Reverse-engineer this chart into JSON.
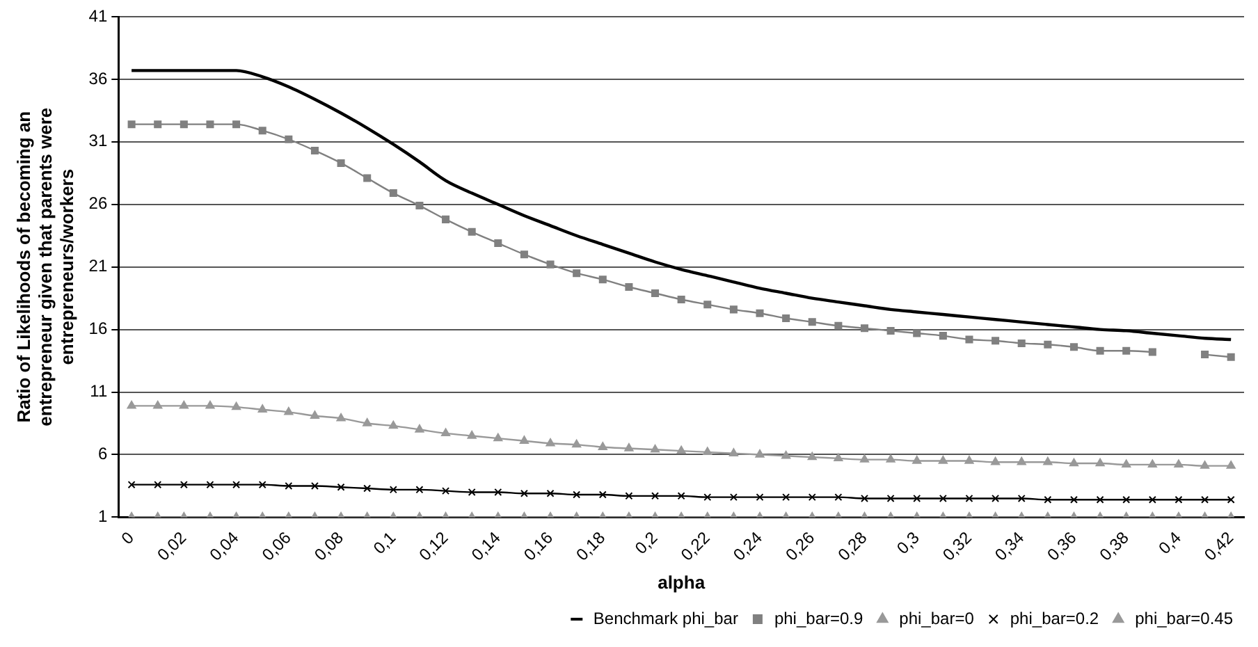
{
  "chart_data": {
    "type": "line",
    "xlabel": "alpha",
    "ylabel": "Ratio of Likelihoods of becoming an entrepreneur given that parents were entrepreneurs/workers",
    "categories": [
      "0",
      null,
      "0,02",
      null,
      "0,04",
      null,
      "0,06",
      null,
      "0,08",
      null,
      "0,1",
      null,
      "0,12",
      null,
      "0,14",
      null,
      "0,16",
      null,
      "0,18",
      null,
      "0,2",
      null,
      "0,22",
      null,
      "0,24",
      null,
      "0,26",
      null,
      "0,28",
      null,
      "0,3",
      null,
      "0,32",
      null,
      "0,34",
      null,
      "0,36",
      null,
      "0,38",
      null,
      "0,4",
      null,
      "0,42"
    ],
    "ylim": [
      1,
      41
    ],
    "yticks": [
      1,
      6,
      11,
      16,
      21,
      26,
      31,
      36,
      41
    ],
    "grid": "y",
    "legend": "bottom",
    "series": [
      {
        "name": "Benchmark phi_bar",
        "color": "#000000",
        "marker": "none",
        "values": [
          36.7,
          36.7,
          36.7,
          36.7,
          36.7,
          36.2,
          35.4,
          34.4,
          33.3,
          32.1,
          30.8,
          29.4,
          27.9,
          26.9,
          26.0,
          25.1,
          24.3,
          23.5,
          22.8,
          22.1,
          21.4,
          20.8,
          20.3,
          19.8,
          19.3,
          18.9,
          18.5,
          18.2,
          17.9,
          17.6,
          17.4,
          17.2,
          17.0,
          16.8,
          16.6,
          16.4,
          16.2,
          16.0,
          15.9,
          15.7,
          15.5,
          15.3,
          15.2
        ]
      },
      {
        "name": "phi_bar=0.9",
        "color": "#808080",
        "marker": "square",
        "values": [
          32.4,
          32.4,
          32.4,
          32.4,
          32.4,
          31.9,
          31.2,
          30.3,
          29.3,
          28.1,
          26.9,
          25.9,
          24.8,
          23.8,
          22.9,
          22.0,
          21.2,
          20.5,
          20.0,
          19.4,
          18.9,
          18.4,
          18.0,
          17.6,
          17.3,
          16.9,
          16.6,
          16.3,
          16.1,
          15.9,
          15.7,
          15.5,
          15.2,
          15.1,
          14.9,
          14.8,
          14.6,
          14.3,
          14.3,
          14.2,
          null,
          14.0,
          13.8
        ]
      },
      {
        "name": "phi_bar=0",
        "color": "#999999",
        "marker": "triangle",
        "values": [
          1,
          1,
          1,
          1,
          1,
          1,
          1,
          1,
          1,
          1,
          1,
          1,
          1,
          1,
          1,
          1,
          1,
          1,
          1,
          1,
          1,
          1,
          1,
          1,
          1,
          1,
          1,
          1,
          1,
          1,
          1,
          1,
          1,
          1,
          1,
          1,
          1,
          1,
          1,
          1,
          1,
          1,
          1
        ]
      },
      {
        "name": "phi_bar=0.2",
        "color": "#000000",
        "marker": "cross",
        "values": [
          3.6,
          3.6,
          3.6,
          3.6,
          3.6,
          3.6,
          3.5,
          3.5,
          3.4,
          3.3,
          3.2,
          3.2,
          3.1,
          3.0,
          3.0,
          2.9,
          2.9,
          2.8,
          2.8,
          2.7,
          2.7,
          2.7,
          2.6,
          2.6,
          2.6,
          2.6,
          2.6,
          2.6,
          2.5,
          2.5,
          2.5,
          2.5,
          2.5,
          2.5,
          2.5,
          2.4,
          2.4,
          2.4,
          2.4,
          2.4,
          2.4,
          2.4,
          2.4
        ]
      },
      {
        "name": "phi_bar=0.45",
        "color": "#999999",
        "marker": "triangle",
        "values": [
          9.9,
          9.9,
          9.9,
          9.9,
          9.8,
          9.6,
          9.4,
          9.1,
          8.9,
          8.5,
          8.3,
          8.0,
          7.7,
          7.5,
          7.3,
          7.1,
          6.9,
          6.8,
          6.6,
          6.5,
          6.4,
          6.3,
          6.2,
          6.1,
          6.0,
          5.9,
          5.8,
          5.7,
          5.6,
          5.6,
          5.5,
          5.5,
          5.5,
          5.4,
          5.4,
          5.4,
          5.3,
          5.3,
          5.2,
          5.2,
          5.2,
          5.1,
          5.1
        ]
      }
    ]
  }
}
